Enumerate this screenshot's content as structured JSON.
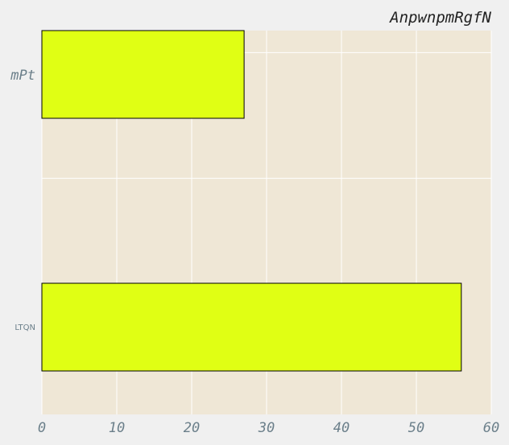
{
  "chart_data": {
    "type": "bar",
    "orientation": "horizontal",
    "title": "AnpwnpmRgfN",
    "categories": [
      "mPt",
      "LTQN"
    ],
    "values": [
      27,
      56
    ],
    "xlabel": "",
    "ylabel": "",
    "xlim": [
      0,
      60
    ],
    "xticks": [
      "0",
      "10",
      "20",
      "30",
      "40",
      "50",
      "60"
    ],
    "grid": true,
    "legend": "none",
    "colors": {
      "bar_fill": "#e0ff14",
      "bar_edge": "#000000",
      "plot_background": "#efe7d6",
      "page_background": "#f0f0f0",
      "grid": "#ffffff",
      "tick_text": "#6b7f8a",
      "title_text": "#222222"
    }
  }
}
